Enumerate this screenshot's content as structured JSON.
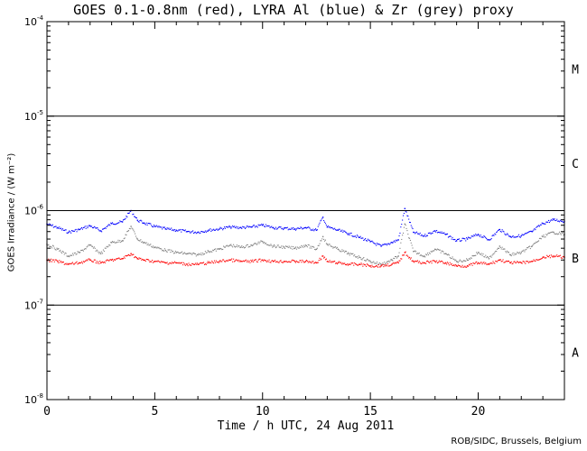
{
  "chart_data": {
    "type": "scatter",
    "title": "GOES 0.1-0.8nm (red), LYRA Al (blue) & Zr (grey) proxy",
    "xlabel": "Time / h UTC, 24 Aug 2011",
    "ylabel": "GOES Irradiance / (W m⁻²)",
    "xlim": [
      0,
      24
    ],
    "ylim": [
      1e-08,
      0.0001
    ],
    "yscale": "log",
    "x_ticks": [
      0,
      5,
      10,
      15,
      20
    ],
    "x_tick_labels": [
      "0",
      "5",
      "10",
      "15",
      "20"
    ],
    "y_ticks": [
      1e-08,
      1e-07,
      1e-06,
      1e-05,
      0.0001
    ],
    "y_tick_labels": [
      {
        "base": "10",
        "exp": "-8"
      },
      {
        "base": "10",
        "exp": "-7"
      },
      {
        "base": "10",
        "exp": "-6"
      },
      {
        "base": "10",
        "exp": "-5"
      },
      {
        "base": "10",
        "exp": "-4"
      }
    ],
    "flare_class_lines": [
      1e-07,
      1e-06,
      1e-05
    ],
    "flare_class_labels": [
      {
        "label": "A",
        "at": 3.16e-08
      },
      {
        "label": "B",
        "at": 3.16e-07
      },
      {
        "label": "C",
        "at": 3.16e-06
      },
      {
        "label": "M",
        "at": 3.16e-05
      }
    ],
    "series": [
      {
        "color": "#0000ff",
        "x": [
          0,
          0.5,
          1,
          1.5,
          2,
          2.5,
          3,
          3.5,
          3.9,
          4.2,
          4.5,
          5,
          5.5,
          6,
          6.5,
          7,
          7.5,
          8,
          8.5,
          9,
          9.5,
          10,
          10.5,
          11,
          11.5,
          12,
          12.5,
          12.8,
          13,
          13.5,
          14,
          14.5,
          15,
          15.5,
          16,
          16.3,
          16.6,
          17,
          17.5,
          18,
          18.5,
          19,
          19.5,
          20,
          20.5,
          21,
          21.5,
          22,
          22.5,
          23,
          23.5,
          24
        ],
        "y": [
          7.2e-07,
          6.6e-07,
          5.9e-07,
          6.3e-07,
          6.9e-07,
          6.1e-07,
          7.3e-07,
          7.6e-07,
          1e-06,
          7.9e-07,
          7.4e-07,
          6.8e-07,
          6.4e-07,
          6.2e-07,
          6e-07,
          5.9e-07,
          6.2e-07,
          6.4e-07,
          6.7e-07,
          6.6e-07,
          6.7e-07,
          7e-07,
          6.6e-07,
          6.5e-07,
          6.4e-07,
          6.6e-07,
          6.2e-07,
          8.5e-07,
          6.7e-07,
          6.2e-07,
          5.7e-07,
          5.2e-07,
          4.7e-07,
          4.2e-07,
          4.6e-07,
          4.9e-07,
          1.05e-06,
          5.9e-07,
          5.4e-07,
          6.1e-07,
          5.6e-07,
          4.8e-07,
          5e-07,
          5.6e-07,
          4.9e-07,
          6.3e-07,
          5.3e-07,
          5.4e-07,
          6e-07,
          7.3e-07,
          8e-07,
          7.7e-07
        ]
      },
      {
        "color": "#808080",
        "x": [
          0,
          0.5,
          1,
          1.5,
          2,
          2.5,
          3,
          3.5,
          3.9,
          4.2,
          4.5,
          5,
          5.5,
          6,
          6.5,
          7,
          7.5,
          8,
          8.5,
          9,
          9.5,
          10,
          10.5,
          11,
          11.5,
          12,
          12.5,
          12.8,
          13,
          13.5,
          14,
          14.5,
          15,
          15.5,
          16,
          16.3,
          16.6,
          17,
          17.5,
          18,
          18.5,
          19,
          19.5,
          20,
          20.5,
          21,
          21.5,
          22,
          22.5,
          23,
          23.5,
          24
        ],
        "y": [
          4.4e-07,
          3.9e-07,
          3.3e-07,
          3.6e-07,
          4.3e-07,
          3.5e-07,
          4.6e-07,
          4.8e-07,
          6.8e-07,
          5e-07,
          4.6e-07,
          4.1e-07,
          3.8e-07,
          3.6e-07,
          3.5e-07,
          3.4e-07,
          3.7e-07,
          3.9e-07,
          4.3e-07,
          4.1e-07,
          4.3e-07,
          4.7e-07,
          4.2e-07,
          4.1e-07,
          4e-07,
          4.3e-07,
          3.9e-07,
          5.3e-07,
          4.4e-07,
          3.9e-07,
          3.5e-07,
          3.2e-07,
          2.9e-07,
          2.7e-07,
          3e-07,
          3.3e-07,
          7.2e-07,
          3.7e-07,
          3.3e-07,
          3.9e-07,
          3.5e-07,
          2.9e-07,
          3e-07,
          3.6e-07,
          3.1e-07,
          4.2e-07,
          3.4e-07,
          3.6e-07,
          4.2e-07,
          5.3e-07,
          5.9e-07,
          5.6e-07
        ]
      },
      {
        "color": "#ff0000",
        "x": [
          0,
          0.5,
          1,
          1.5,
          2,
          2.5,
          3,
          3.5,
          3.9,
          4.2,
          4.5,
          5,
          5.5,
          6,
          6.5,
          7,
          7.5,
          8,
          8.5,
          9,
          9.5,
          10,
          10.5,
          11,
          11.5,
          12,
          12.5,
          12.8,
          13,
          13.5,
          14,
          14.5,
          15,
          15.5,
          16,
          16.3,
          16.6,
          17,
          17.5,
          18,
          18.5,
          19,
          19.5,
          20,
          20.5,
          21,
          21.5,
          22,
          22.5,
          23,
          23.5,
          24
        ],
        "y": [
          3e-07,
          2.9e-07,
          2.7e-07,
          2.8e-07,
          3e-07,
          2.8e-07,
          3e-07,
          3.1e-07,
          3.5e-07,
          3.1e-07,
          3e-07,
          2.9e-07,
          2.8e-07,
          2.8e-07,
          2.7e-07,
          2.7e-07,
          2.8e-07,
          2.9e-07,
          3e-07,
          2.9e-07,
          2.9e-07,
          3e-07,
          2.9e-07,
          2.9e-07,
          2.9e-07,
          2.9e-07,
          2.8e-07,
          3.3e-07,
          2.9e-07,
          2.8e-07,
          2.7e-07,
          2.7e-07,
          2.6e-07,
          2.6e-07,
          2.7e-07,
          2.8e-07,
          3.6e-07,
          2.9e-07,
          2.8e-07,
          2.9e-07,
          2.8e-07,
          2.6e-07,
          2.6e-07,
          2.8e-07,
          2.7e-07,
          3e-07,
          2.8e-07,
          2.8e-07,
          2.9e-07,
          3.2e-07,
          3.3e-07,
          3.2e-07
        ]
      }
    ],
    "grid": false,
    "legend": "none"
  },
  "credit": "ROB/SIDC, Brussels, Belgium"
}
